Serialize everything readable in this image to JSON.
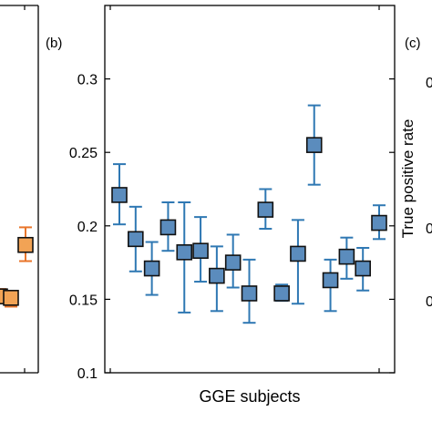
{
  "chart_data": [
    {
      "panel_label": "",
      "type": "scatter",
      "partial": true,
      "marker": "square",
      "marker_color": "#f2a355",
      "errorbar_color": "#e8752a",
      "ylim": [
        0.1,
        0.35
      ],
      "points": [
        {
          "x": 1,
          "y": 0.152,
          "err_low": 0.148,
          "err_high": 0.157
        },
        {
          "x": 2,
          "y": 0.151,
          "err_low": 0.145,
          "err_high": 0.155
        },
        {
          "x": 3,
          "y": 0.187,
          "err_low": 0.176,
          "err_high": 0.199
        }
      ]
    },
    {
      "panel_label": "(b)",
      "type": "scatter",
      "marker": "square",
      "marker_color": "#5b8cbd",
      "errorbar_color": "#2f78b3",
      "xlabel": "GGE subjects",
      "ylabel": "",
      "ylim": [
        0.1,
        0.35
      ],
      "yticks": [
        "0.1",
        "0.15",
        "0.2",
        "0.25",
        "0.3"
      ],
      "points": [
        {
          "x": 1,
          "y": 0.221,
          "err_low": 0.201,
          "err_high": 0.242
        },
        {
          "x": 2,
          "y": 0.191,
          "err_low": 0.169,
          "err_high": 0.213
        },
        {
          "x": 3,
          "y": 0.171,
          "err_low": 0.153,
          "err_high": 0.189
        },
        {
          "x": 4,
          "y": 0.199,
          "err_low": 0.183,
          "err_high": 0.216
        },
        {
          "x": 5,
          "y": 0.182,
          "err_low": 0.141,
          "err_high": 0.216
        },
        {
          "x": 6,
          "y": 0.183,
          "err_low": 0.162,
          "err_high": 0.206
        },
        {
          "x": 7,
          "y": 0.166,
          "err_low": 0.142,
          "err_high": 0.186
        },
        {
          "x": 8,
          "y": 0.175,
          "err_low": 0.158,
          "err_high": 0.194
        },
        {
          "x": 9,
          "y": 0.154,
          "err_low": 0.134,
          "err_high": 0.177
        },
        {
          "x": 10,
          "y": 0.211,
          "err_low": 0.198,
          "err_high": 0.225
        },
        {
          "x": 11,
          "y": 0.154,
          "err_low": 0.149,
          "err_high": 0.16
        },
        {
          "x": 12,
          "y": 0.181,
          "err_low": 0.147,
          "err_high": 0.204
        },
        {
          "x": 13,
          "y": 0.255,
          "err_low": 0.228,
          "err_high": 0.282
        },
        {
          "x": 14,
          "y": 0.163,
          "err_low": 0.142,
          "err_high": 0.177
        },
        {
          "x": 15,
          "y": 0.179,
          "err_low": 0.164,
          "err_high": 0.192
        },
        {
          "x": 16,
          "y": 0.171,
          "err_low": 0.156,
          "err_high": 0.185
        },
        {
          "x": 17,
          "y": 0.202,
          "err_low": 0.191,
          "err_high": 0.214
        }
      ]
    },
    {
      "panel_label": "(c)",
      "type": "scatter",
      "partial": true,
      "ylabel": "True positive rate",
      "yticks_partial": [
        "0",
        "0",
        "0"
      ]
    }
  ]
}
